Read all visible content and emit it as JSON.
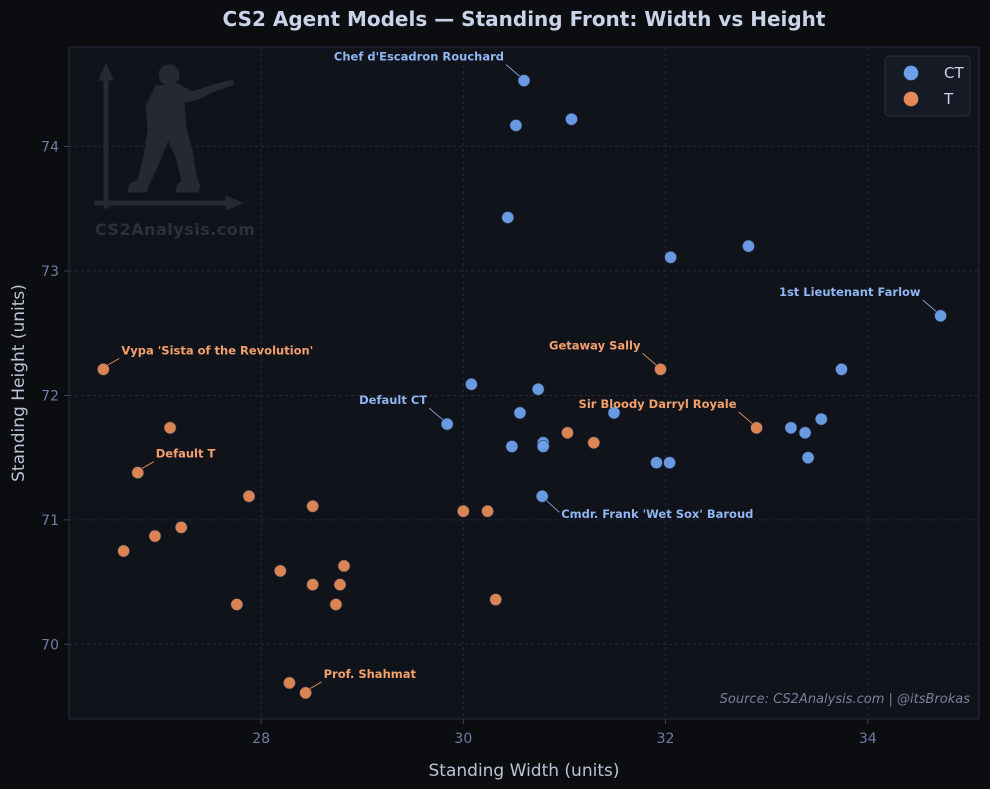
{
  "chart_data": {
    "type": "scatter",
    "title": "CS2 Agent Models — Standing Front: Width vs Height",
    "xlabel": "Standing Width (units)",
    "ylabel": "Standing Height (units)",
    "xlim": [
      26.1,
      35.1
    ],
    "ylim": [
      69.4,
      74.8
    ],
    "xticks": [
      28,
      30,
      32,
      34
    ],
    "yticks": [
      70,
      71,
      72,
      73,
      74
    ],
    "grid": true,
    "legend_position": "top-right",
    "colors": {
      "CT": "#6fa0ec",
      "T": "#e78a56",
      "grid": "#232838",
      "plot_bg": "#11131b",
      "page_bg": "#0c0d11"
    },
    "series": [
      {
        "name": "CT",
        "points": [
          {
            "x": 30.6,
            "y": 74.53
          },
          {
            "x": 31.07,
            "y": 74.22
          },
          {
            "x": 30.52,
            "y": 74.17
          },
          {
            "x": 30.44,
            "y": 73.43
          },
          {
            "x": 32.82,
            "y": 73.2
          },
          {
            "x": 32.05,
            "y": 73.11
          },
          {
            "x": 34.72,
            "y": 72.64
          },
          {
            "x": 33.74,
            "y": 72.21
          },
          {
            "x": 30.08,
            "y": 72.09
          },
          {
            "x": 30.74,
            "y": 72.05
          },
          {
            "x": 31.49,
            "y": 71.86
          },
          {
            "x": 30.56,
            "y": 71.86
          },
          {
            "x": 29.84,
            "y": 71.77
          },
          {
            "x": 33.54,
            "y": 71.81
          },
          {
            "x": 33.24,
            "y": 71.74
          },
          {
            "x": 33.38,
            "y": 71.7
          },
          {
            "x": 30.79,
            "y": 71.62
          },
          {
            "x": 30.48,
            "y": 71.59
          },
          {
            "x": 30.79,
            "y": 71.59
          },
          {
            "x": 33.41,
            "y": 71.5
          },
          {
            "x": 31.91,
            "y": 71.46
          },
          {
            "x": 32.04,
            "y": 71.46
          },
          {
            "x": 30.78,
            "y": 71.19
          }
        ]
      },
      {
        "name": "T",
        "points": [
          {
            "x": 26.44,
            "y": 72.21
          },
          {
            "x": 31.95,
            "y": 72.21
          },
          {
            "x": 27.1,
            "y": 71.74
          },
          {
            "x": 32.9,
            "y": 71.74
          },
          {
            "x": 31.03,
            "y": 71.7
          },
          {
            "x": 31.29,
            "y": 71.62
          },
          {
            "x": 26.78,
            "y": 71.38
          },
          {
            "x": 27.88,
            "y": 71.19
          },
          {
            "x": 28.51,
            "y": 71.11
          },
          {
            "x": 30.0,
            "y": 71.07
          },
          {
            "x": 30.24,
            "y": 71.07
          },
          {
            "x": 27.21,
            "y": 70.94
          },
          {
            "x": 26.95,
            "y": 70.87
          },
          {
            "x": 26.64,
            "y": 70.75
          },
          {
            "x": 28.82,
            "y": 70.63
          },
          {
            "x": 28.19,
            "y": 70.59
          },
          {
            "x": 28.51,
            "y": 70.48
          },
          {
            "x": 28.78,
            "y": 70.48
          },
          {
            "x": 30.32,
            "y": 70.36
          },
          {
            "x": 27.76,
            "y": 70.32
          },
          {
            "x": 28.74,
            "y": 70.32
          },
          {
            "x": 28.28,
            "y": 69.69
          },
          {
            "x": 28.44,
            "y": 69.61
          }
        ]
      }
    ],
    "annotations": [
      {
        "text": "Chef d'Escadron Rouchard",
        "series": "CT",
        "x": 30.6,
        "y": 74.53,
        "side": "left"
      },
      {
        "text": "1st Lieutenant Farlow",
        "series": "CT",
        "x": 34.72,
        "y": 72.64,
        "side": "left"
      },
      {
        "text": "Default CT",
        "series": "CT",
        "x": 29.84,
        "y": 71.77,
        "side": "left"
      },
      {
        "text": "Cmdr. Frank 'Wet Sox' Baroud",
        "series": "CT",
        "x": 30.78,
        "y": 71.19,
        "side": "right-below"
      },
      {
        "text": "Vypa 'Sista of the Revolution'",
        "series": "T",
        "x": 26.44,
        "y": 72.21,
        "side": "right"
      },
      {
        "text": "Getaway Sally",
        "series": "T",
        "x": 31.95,
        "y": 72.21,
        "side": "left"
      },
      {
        "text": "Sir Bloody Darryl Royale",
        "series": "T",
        "x": 32.9,
        "y": 71.74,
        "side": "left"
      },
      {
        "text": "Default T",
        "series": "T",
        "x": 26.78,
        "y": 71.38,
        "side": "right"
      },
      {
        "text": "Prof. Shahmat",
        "series": "T",
        "x": 28.44,
        "y": 69.61,
        "side": "right"
      }
    ],
    "source": "Source: CS2Analysis.com  |  @itsBrokas",
    "watermark": "CS2Analysis.com"
  }
}
